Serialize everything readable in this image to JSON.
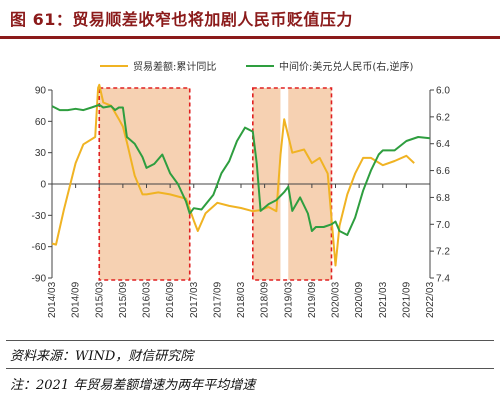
{
  "title": "图 61：贸易顺差收窄也将加剧人民币贬值压力",
  "chart_data": {
    "type": "line",
    "x": [
      "2014/03",
      "2014/09",
      "2015/03",
      "2015/09",
      "2016/03",
      "2016/09",
      "2017/03",
      "2017/09",
      "2018/03",
      "2018/09",
      "2019/03",
      "2019/09",
      "2020/03",
      "2020/09",
      "2021/03",
      "2021/09",
      "2022/03"
    ],
    "left_ylim": [
      -90,
      90
    ],
    "left_yticks": [
      "90",
      "60",
      "30",
      "0",
      "-30",
      "-60",
      "-90"
    ],
    "right_ylim": [
      7.4,
      6.0
    ],
    "right_yticks": [
      "6.0",
      "6.2",
      "6.4",
      "6.6",
      "6.8",
      "7.0",
      "7.2",
      "7.4"
    ],
    "series": [
      {
        "name": "贸易差额:累计同比",
        "axis": "left",
        "color": "#f0b323",
        "points": [
          [
            0,
            -57
          ],
          [
            0.17,
            -58
          ],
          [
            0.5,
            -25
          ],
          [
            1,
            20
          ],
          [
            1.33,
            38
          ],
          [
            1.83,
            45
          ],
          [
            1.95,
            92
          ],
          [
            2.0,
            95
          ],
          [
            2.17,
            78
          ],
          [
            2.5,
            75
          ],
          [
            2.83,
            62
          ],
          [
            3,
            55
          ],
          [
            3.17,
            40
          ],
          [
            3.5,
            8
          ],
          [
            3.83,
            -10
          ],
          [
            4,
            -10
          ],
          [
            4.5,
            -8
          ],
          [
            5,
            -10
          ],
          [
            5.33,
            -12
          ],
          [
            5.67,
            -14
          ],
          [
            6.0,
            -35
          ],
          [
            6.17,
            -45
          ],
          [
            6.5,
            -28
          ],
          [
            7,
            -18
          ],
          [
            7.5,
            -21
          ],
          [
            8,
            -23
          ],
          [
            8.5,
            -26
          ],
          [
            8.83,
            -25
          ],
          [
            9.17,
            -22
          ],
          [
            9.5,
            -26
          ],
          [
            9.67,
            28
          ],
          [
            9.83,
            62
          ],
          [
            10.17,
            30
          ],
          [
            10.67,
            33
          ],
          [
            11.0,
            20
          ],
          [
            11.33,
            25
          ],
          [
            11.67,
            10
          ],
          [
            12.0,
            -78
          ],
          [
            12.17,
            -40
          ],
          [
            12.5,
            -10
          ],
          [
            12.83,
            10
          ],
          [
            13.17,
            25
          ],
          [
            13.5,
            25
          ],
          [
            14,
            18
          ],
          [
            14.5,
            22
          ],
          [
            15,
            27
          ],
          [
            15.33,
            20
          ]
        ]
      },
      {
        "name": "中间价:美元兑人民币(右,逆序)",
        "axis": "right",
        "color": "#2e9e3f",
        "points": [
          [
            0,
            6.12
          ],
          [
            0.33,
            6.15
          ],
          [
            0.67,
            6.15
          ],
          [
            1,
            6.14
          ],
          [
            1.33,
            6.15
          ],
          [
            1.67,
            6.13
          ],
          [
            2,
            6.11
          ],
          [
            2.17,
            6.13
          ],
          [
            2.5,
            6.12
          ],
          [
            2.67,
            6.15
          ],
          [
            2.83,
            6.13
          ],
          [
            3,
            6.13
          ],
          [
            3.17,
            6.35
          ],
          [
            3.5,
            6.4
          ],
          [
            3.83,
            6.5
          ],
          [
            4.0,
            6.58
          ],
          [
            4.33,
            6.55
          ],
          [
            4.67,
            6.48
          ],
          [
            5.0,
            6.62
          ],
          [
            5.33,
            6.7
          ],
          [
            5.67,
            6.83
          ],
          [
            5.83,
            6.92
          ],
          [
            6.0,
            6.88
          ],
          [
            6.33,
            6.89
          ],
          [
            6.83,
            6.78
          ],
          [
            7.17,
            6.62
          ],
          [
            7.5,
            6.53
          ],
          [
            7.83,
            6.38
          ],
          [
            8.17,
            6.28
          ],
          [
            8.5,
            6.31
          ],
          [
            8.67,
            6.55
          ],
          [
            8.83,
            6.9
          ],
          [
            9.17,
            6.85
          ],
          [
            9.5,
            6.82
          ],
          [
            9.83,
            6.76
          ],
          [
            10.0,
            6.72
          ],
          [
            10.17,
            6.9
          ],
          [
            10.5,
            6.8
          ],
          [
            10.83,
            6.92
          ],
          [
            11.0,
            7.05
          ],
          [
            11.17,
            7.02
          ],
          [
            11.5,
            7.02
          ],
          [
            11.83,
            7.0
          ],
          [
            12.0,
            6.98
          ],
          [
            12.17,
            7.05
          ],
          [
            12.5,
            7.08
          ],
          [
            12.83,
            6.95
          ],
          [
            13.17,
            6.75
          ],
          [
            13.5,
            6.6
          ],
          [
            13.83,
            6.48
          ],
          [
            14,
            6.45
          ],
          [
            14.5,
            6.45
          ],
          [
            15,
            6.38
          ],
          [
            15.5,
            6.35
          ],
          [
            16,
            6.36
          ]
        ]
      }
    ],
    "highlights": [
      [
        2.0,
        5.83
      ],
      [
        8.5,
        11.83
      ]
    ],
    "highlight_gap": [
      9.67,
      10.0
    ]
  },
  "footer": {
    "source": "资料来源：WIND，财信研究院",
    "note": "注：2021 年贸易差额增速为两年平均增速"
  },
  "colors": {
    "title": "#8b1a1a",
    "shade": "#f4c9a4",
    "dash_box": "#e02020",
    "axis": "#444444"
  }
}
